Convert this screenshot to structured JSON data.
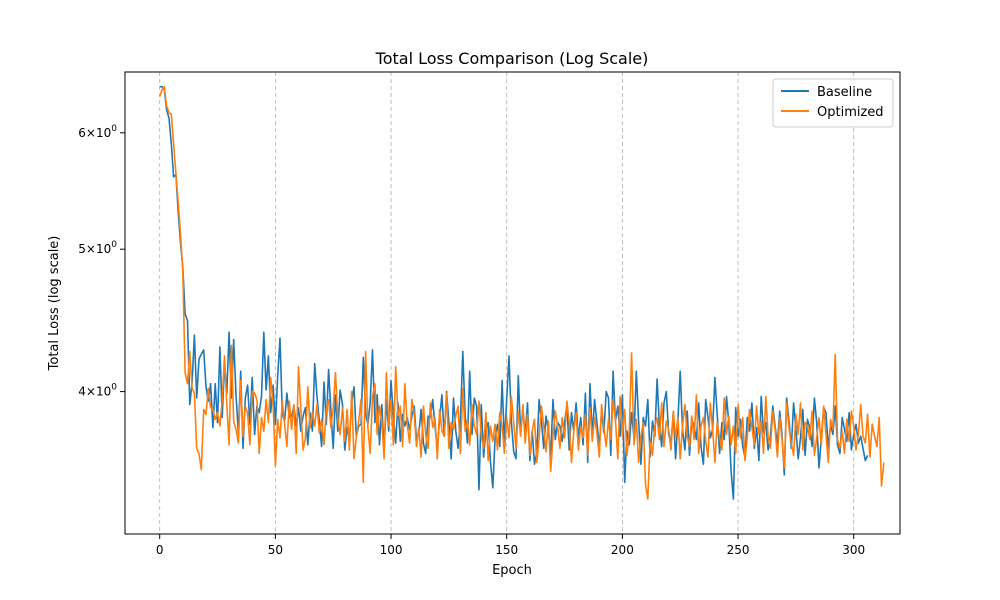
{
  "chart_data": {
    "type": "line",
    "title": "Total Loss Comparison (Log Scale)",
    "xlabel": "Epoch",
    "ylabel": "Total Loss (log scale)",
    "yscale": "log",
    "xlim": [
      -15,
      320
    ],
    "ylim": [
      3.2,
      6.6
    ],
    "grid": "x-only, dashed",
    "legend_position": "top-right",
    "x_ticks": [
      0,
      50,
      100,
      150,
      200,
      250,
      300
    ],
    "y_ticks": [
      {
        "value": 6,
        "label": "6 × 10^0"
      },
      {
        "value": 5,
        "label": "5 × 10^0"
      },
      {
        "value": 4,
        "label": "4 × 10^0"
      }
    ],
    "series": [
      {
        "name": "Baseline",
        "color": "#1f77b4",
        "x_start": 0,
        "x_step": 1,
        "values": [
          6.45,
          6.45,
          6.42,
          6.22,
          6.14,
          5.9,
          5.6,
          5.62,
          5.3,
          5.05,
          4.86,
          4.52,
          4.47,
          3.92,
          4.06,
          4.37,
          3.96,
          4.21,
          4.24,
          4.27,
          4.03,
          3.94,
          4.05,
          3.78,
          4.05,
          3.81,
          4.29,
          3.84,
          4.18,
          3.99,
          4.39,
          3.96,
          4.34,
          3.98,
          3.75,
          4.13,
          3.66,
          3.96,
          4.04,
          3.8,
          4.09,
          3.74,
          3.91,
          3.87,
          3.97,
          4.39,
          4.01,
          4.23,
          3.87,
          4.04,
          3.8,
          4.1,
          4.35,
          3.86,
          3.82,
          3.99,
          3.84,
          3.85,
          3.91,
          3.79,
          3.9,
          3.76,
          3.85,
          3.9,
          3.68,
          3.87,
          3.76,
          4.18,
          3.97,
          3.82,
          3.67,
          4.06,
          3.8,
          4.14,
          3.88,
          3.66,
          3.98,
          3.76,
          4.01,
          3.92,
          3.65,
          3.78,
          3.71,
          3.93,
          4.03,
          3.73,
          3.79,
          3.8,
          4.22,
          3.86,
          3.8,
          3.93,
          4.27,
          3.81,
          3.98,
          3.68,
          3.92,
          3.64,
          3.95,
          3.76,
          4.07,
          3.85,
          3.69,
          3.93,
          3.7,
          3.86,
          3.79,
          3.84,
          3.77,
          3.85,
          3.91,
          3.71,
          3.74,
          3.89,
          3.69,
          3.63,
          3.85,
          3.84,
          3.95,
          3.79,
          3.66,
          3.83,
          3.98,
          3.73,
          4.0,
          3.81,
          3.6,
          3.96,
          3.76,
          3.66,
          3.82,
          4.26,
          3.86,
          3.69,
          4.13,
          3.74,
          3.96,
          3.91,
          3.43,
          3.92,
          3.61,
          3.77,
          3.81,
          3.58,
          3.44,
          3.72,
          3.8,
          3.67,
          4.07,
          3.69,
          3.95,
          4.23,
          3.82,
          3.64,
          3.6,
          4.1,
          3.75,
          3.89,
          3.74,
          3.93,
          3.59,
          3.76,
          3.57,
          3.64,
          3.95,
          3.82,
          3.66,
          3.85,
          3.76,
          3.62,
          3.95,
          3.71,
          3.81,
          3.79,
          3.7,
          3.81,
          3.92,
          3.65,
          3.87,
          3.76,
          3.93,
          3.71,
          3.84,
          3.68,
          3.99,
          3.58,
          4.05,
          3.73,
          3.95,
          3.81,
          3.67,
          3.88,
          3.75,
          4.0,
          3.96,
          3.62,
          4.13,
          3.82,
          3.91,
          3.73,
          3.98,
          3.47,
          3.76,
          3.68,
          3.87,
          3.72,
          4.13,
          3.82,
          3.57,
          3.84,
          3.79,
          3.95,
          3.61,
          3.82,
          3.73,
          4.08,
          3.79,
          3.67,
          3.93,
          4.0,
          3.74,
          3.69,
          3.87,
          3.6,
          3.82,
          4.13,
          3.77,
          3.65,
          3.88,
          3.62,
          3.83,
          3.79,
          3.71,
          3.93,
          3.67,
          3.57,
          3.95,
          3.84,
          3.72,
          3.77,
          4.09,
          3.86,
          3.63,
          3.81,
          3.71,
          3.97,
          3.81,
          3.53,
          3.38,
          3.9,
          3.73,
          3.83,
          3.67,
          3.61,
          3.84,
          3.76,
          3.93,
          3.66,
          3.78,
          3.59,
          3.97,
          3.75,
          3.81,
          3.65,
          3.73,
          3.91,
          3.79,
          3.68,
          3.88,
          3.74,
          3.51,
          3.96,
          3.82,
          3.66,
          3.93,
          3.77,
          3.6,
          3.72,
          3.89,
          3.62,
          3.83,
          3.78,
          3.67,
          3.96,
          3.81,
          3.55,
          3.72,
          3.9,
          3.87,
          3.66,
          3.8,
          3.74,
          3.91,
          3.68,
          3.63,
          3.84,
          3.77,
          3.7,
          3.87,
          3.65,
          3.74,
          3.8,
          3.69,
          3.73,
          3.66,
          3.59,
          3.62
        ]
      },
      {
        "name": "Optimized",
        "color": "#ff7f0e",
        "x_start": 0,
        "x_step": 1,
        "values": [
          6.35,
          6.42,
          6.45,
          6.26,
          6.19,
          6.18,
          5.9,
          5.63,
          5.38,
          5.12,
          4.83,
          4.12,
          4.05,
          4.26,
          4.02,
          3.99,
          3.66,
          3.63,
          3.54,
          3.89,
          3.86,
          4.02,
          3.9,
          3.89,
          3.83,
          3.87,
          3.79,
          3.95,
          4.23,
          3.92,
          3.68,
          4.3,
          3.82,
          3.77,
          3.69,
          4.07,
          3.73,
          3.91,
          3.87,
          3.68,
          4.0,
          3.99,
          3.95,
          3.63,
          3.84,
          3.76,
          3.95,
          3.81,
          4.09,
          3.92,
          3.56,
          3.83,
          3.72,
          3.94,
          3.8,
          3.67,
          3.94,
          3.77,
          3.92,
          3.63,
          4.16,
          3.9,
          3.65,
          3.72,
          4.03,
          3.78,
          3.87,
          3.79,
          3.92,
          3.75,
          3.83,
          3.68,
          3.89,
          3.95,
          3.78,
          3.9,
          4.12,
          3.83,
          3.74,
          3.9,
          3.7,
          3.89,
          3.65,
          4.0,
          3.6,
          3.72,
          3.82,
          3.95,
          3.47,
          4.26,
          3.78,
          3.63,
          3.97,
          4.05,
          3.74,
          3.91,
          3.82,
          3.6,
          4.12,
          3.79,
          3.95,
          3.68,
          4.16,
          3.85,
          3.91,
          3.67,
          4.05,
          3.8,
          3.69,
          3.95,
          3.86,
          3.67,
          3.78,
          3.61,
          3.91,
          3.74,
          3.66,
          3.93,
          3.78,
          3.84,
          3.6,
          3.89,
          3.76,
          3.73,
          3.99,
          3.66,
          3.81,
          3.77,
          3.85,
          3.91,
          3.63,
          4.02,
          3.76,
          3.82,
          3.68,
          3.92,
          3.79,
          3.74,
          3.94,
          3.73,
          3.66,
          3.87,
          3.59,
          3.79,
          3.7,
          3.8,
          3.65,
          3.87,
          3.79,
          3.63,
          3.84,
          3.72,
          3.97,
          3.81,
          3.66,
          3.88,
          3.73,
          3.92,
          3.69,
          3.86,
          3.62,
          3.76,
          3.83,
          3.58,
          3.72,
          3.91,
          3.79,
          3.64,
          3.82,
          3.53,
          3.73,
          3.88,
          3.79,
          3.66,
          3.84,
          3.72,
          3.94,
          3.81,
          3.58,
          3.76,
          3.87,
          3.65,
          3.79,
          3.72,
          3.86,
          3.62,
          3.9,
          3.7,
          3.84,
          3.75,
          3.61,
          3.92,
          3.78,
          3.67,
          3.83,
          3.71,
          3.95,
          3.83,
          3.6,
          3.97,
          3.73,
          3.89,
          3.62,
          3.76,
          4.25,
          3.68,
          3.83,
          3.58,
          3.73,
          3.81,
          3.46,
          3.38,
          3.7,
          3.62,
          3.79,
          3.84,
          3.71,
          3.93,
          3.67,
          3.82,
          3.77,
          3.65,
          3.88,
          3.72,
          3.84,
          3.6,
          3.79,
          3.92,
          3.73,
          3.67,
          3.85,
          3.71,
          3.98,
          3.63,
          3.79,
          3.84,
          3.7,
          3.61,
          3.93,
          3.77,
          3.58,
          3.81,
          3.72,
          3.65,
          3.96,
          3.74,
          3.85,
          3.68,
          3.79,
          3.63,
          3.92,
          3.72,
          3.84,
          3.59,
          3.73,
          3.89,
          3.78,
          3.68,
          3.91,
          3.74,
          3.82,
          3.63,
          3.97,
          3.73,
          3.66,
          3.88,
          3.77,
          3.61,
          3.84,
          3.71,
          3.55,
          3.93,
          3.78,
          3.69,
          3.62,
          3.86,
          3.74,
          3.93,
          3.65,
          3.81,
          3.79,
          3.71,
          3.88,
          3.62,
          3.72,
          3.84,
          3.68,
          3.91,
          3.74,
          3.58,
          3.83,
          3.77,
          4.24,
          3.71,
          3.66,
          3.76,
          3.63,
          3.83,
          3.7,
          3.88,
          3.79,
          3.65,
          3.74,
          3.92,
          3.73,
          3.69,
          3.86,
          3.61,
          3.8,
          3.73,
          3.67,
          3.84,
          3.45,
          3.58
        ]
      }
    ]
  }
}
